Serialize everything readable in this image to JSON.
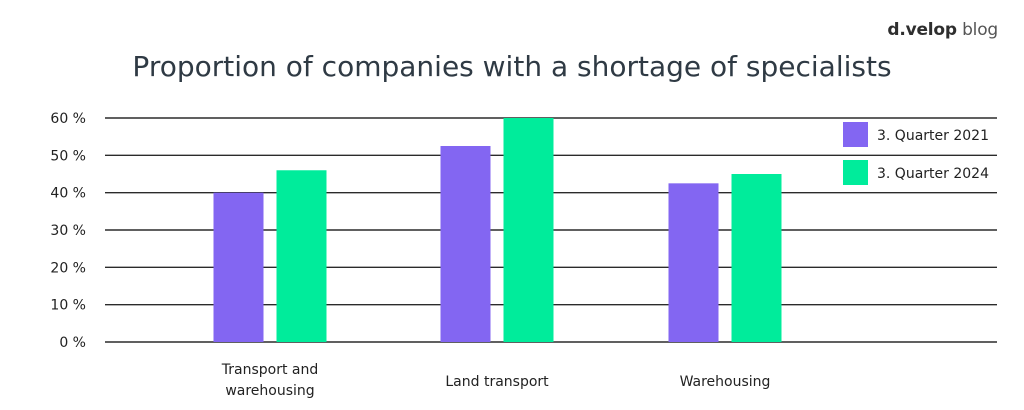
{
  "brand": {
    "name": "d.velop",
    "suffix": "blog"
  },
  "colors": {
    "series1": "#8366f2",
    "series2": "#00ec9b",
    "grid": "#2b2b2b",
    "text": "#222222"
  },
  "chart_data": {
    "type": "bar",
    "title": "Proportion of companies with a shortage of specialists",
    "categories": [
      "Transport and warehousing",
      "Land transport",
      "Warehousing"
    ],
    "series": [
      {
        "name": "3. Quarter 2021",
        "values": [
          40,
          52.5,
          42.5
        ]
      },
      {
        "name": "3. Quarter 2024",
        "values": [
          46,
          60,
          45
        ]
      }
    ],
    "ylim": [
      0,
      60
    ],
    "yticks": [
      0,
      10,
      20,
      30,
      40,
      50,
      60
    ],
    "ytick_labels": [
      "0 %",
      "10 %",
      "20 %",
      "30 %",
      "40 %",
      "50 %",
      "60 %"
    ],
    "xlabel": "",
    "ylabel": "",
    "grid": true,
    "legend": "top-right"
  }
}
